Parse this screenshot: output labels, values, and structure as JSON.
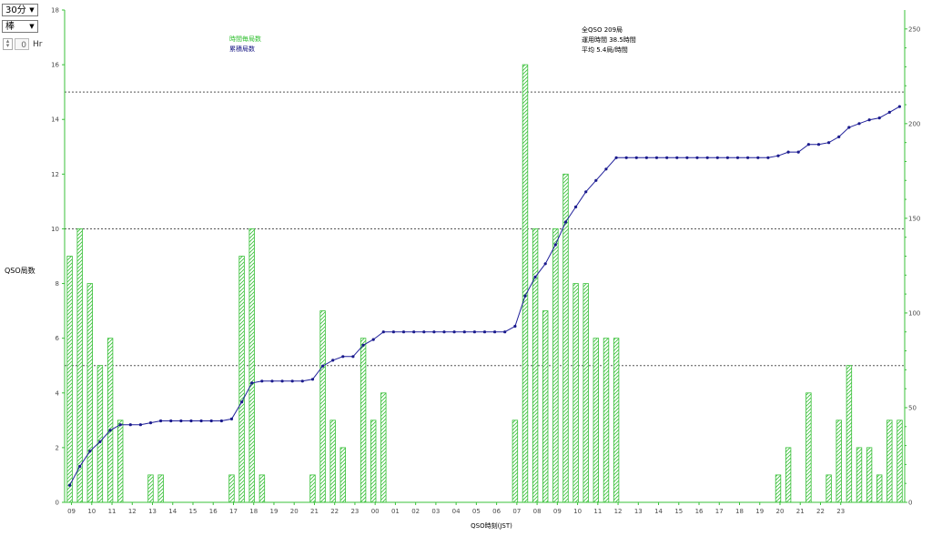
{
  "controls": {
    "interval_value": "30分",
    "chart_type_value": "棒",
    "hour_offset_value": "0",
    "hour_unit": "Hr"
  },
  "chart_data": {
    "type": "bar",
    "xlabel": "QSO時刻(JST)",
    "ylabel": "QSO局数",
    "y_left_ticks": [
      "0",
      "2",
      "4",
      "6",
      "8",
      "10",
      "12",
      "14",
      "16",
      "18"
    ],
    "y_left_range": [
      0,
      18
    ],
    "y_right_ticks": [
      "0",
      "50",
      "100",
      "150",
      "200",
      "250"
    ],
    "y_right_range": [
      0,
      260
    ],
    "x_tick_labels": [
      "09",
      "10",
      "11",
      "12",
      "13",
      "14",
      "15",
      "16",
      "17",
      "18",
      "19",
      "20",
      "21",
      "22",
      "23",
      "00",
      "01",
      "02",
      "03",
      "04",
      "05",
      "06",
      "07",
      "08",
      "09",
      "10",
      "11",
      "12",
      "13",
      "14",
      "15",
      "16",
      "17",
      "18",
      "19",
      "20",
      "21",
      "22",
      "23"
    ],
    "reference_lines_left_axis": [
      5,
      10,
      15
    ],
    "legend": {
      "position": "top-left",
      "entries": [
        "時間毎局数",
        "累積局数"
      ]
    },
    "summary": {
      "total": "全QSO 209局",
      "hours": "運用時間 38.5時間",
      "average": "平均 5.4局/時間"
    },
    "series": [
      {
        "name": "時間毎局数",
        "kind": "bar",
        "axis": "left",
        "values": [
          9,
          10,
          8,
          5,
          6,
          3,
          0,
          0,
          1,
          1,
          0,
          0,
          0,
          0,
          0,
          0,
          1,
          9,
          10,
          1,
          0,
          0,
          0,
          0,
          1,
          7,
          3,
          2,
          0,
          6,
          3,
          4,
          0,
          0,
          0,
          0,
          0,
          0,
          0,
          0,
          0,
          0,
          0,
          0,
          3,
          16,
          10,
          7,
          10,
          12,
          8,
          8,
          6,
          6,
          6,
          0,
          0,
          0,
          0,
          0,
          0,
          0,
          0,
          0,
          0,
          0,
          0,
          0,
          0,
          0,
          1,
          2,
          0,
          4,
          0,
          1,
          3,
          5,
          2,
          2,
          1,
          3,
          3
        ]
      },
      {
        "name": "累積局数",
        "kind": "line",
        "axis": "right",
        "values": [
          9,
          19,
          27,
          32,
          38,
          41,
          41,
          41,
          42,
          43,
          43,
          43,
          43,
          43,
          43,
          43,
          44,
          53,
          63,
          64,
          64,
          64,
          64,
          64,
          65,
          72,
          75,
          77,
          77,
          83,
          86,
          90,
          90,
          90,
          90,
          90,
          90,
          90,
          90,
          90,
          90,
          90,
          90,
          90,
          93,
          109,
          119,
          126,
          136,
          148,
          156,
          164,
          170,
          176,
          182,
          182,
          182,
          182,
          182,
          182,
          182,
          182,
          182,
          182,
          182,
          182,
          182,
          182,
          182,
          182,
          183,
          185,
          185,
          189,
          189,
          190,
          193,
          198,
          200,
          202,
          203,
          206,
          209
        ]
      }
    ]
  }
}
